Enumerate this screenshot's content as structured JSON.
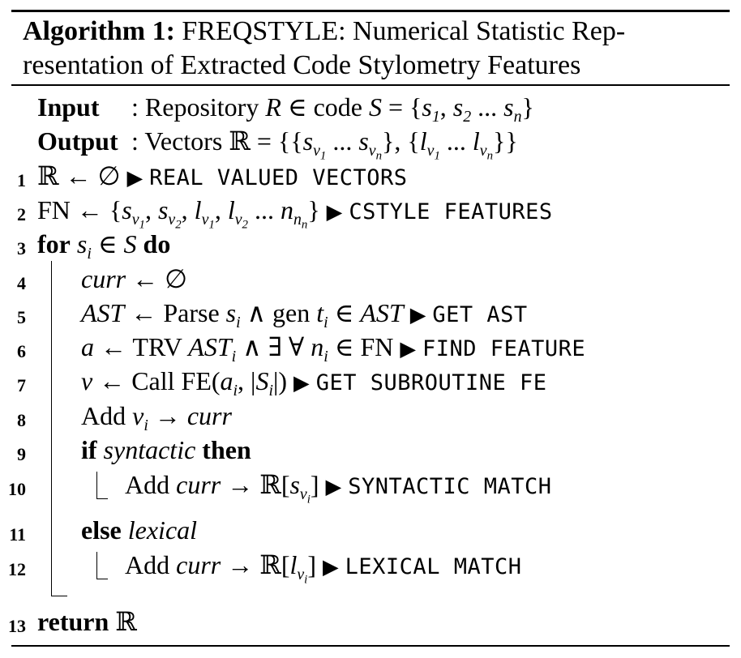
{
  "algorithm": {
    "label": "Algorithm 1:",
    "title": "FREQSTYLE: Numerical Statistic Representation of Extracted Code Stylometry Features",
    "title_line1": "FREQSTYLE: Numerical Statistic Rep-",
    "title_line2": "resentation of Extracted Code Stylometry Features"
  },
  "input": {
    "label": "Input",
    "text": ": Repository R ∈ code S = {s1, s2 ... sn}"
  },
  "output": {
    "label": "Output",
    "text": ": Vectors ℝ = {{sv1 ... svn}, {lv1 ... lvn}}"
  },
  "lines": [
    {
      "num": "1",
      "code": "ℝ ← ∅",
      "comment": "REAL VALUED VECTORS"
    },
    {
      "num": "2",
      "code": "FN ← {sv1, sv2, lv1, lv2 ... nnn}",
      "comment": "CSTYLE FEATURES"
    },
    {
      "num": "3",
      "code": "for si ∈ S do",
      "comment": ""
    },
    {
      "num": "4",
      "code": "curr ← ∅",
      "comment": ""
    },
    {
      "num": "5",
      "code": "AST ← Parse si ∧ gen ti ∈ AST",
      "comment": "GET AST"
    },
    {
      "num": "6",
      "code": "a ← TRV ASTi ∧ ∃ ∀ ni ∈ FN",
      "comment": "FIND FEATURE"
    },
    {
      "num": "7",
      "code": "v ← Call FE(ai, |Si|)",
      "comment": "GET SUBROUTINE FE"
    },
    {
      "num": "8",
      "code": "Add vi → curr",
      "comment": ""
    },
    {
      "num": "9",
      "code": "if syntactic then",
      "comment": ""
    },
    {
      "num": "10",
      "code": "Add curr → ℝ[svi]",
      "comment": "SYNTACTIC MATCH"
    },
    {
      "num": "11",
      "code": "else lexical",
      "comment": ""
    },
    {
      "num": "12",
      "code": "Add curr → ℝ[lvi]",
      "comment": "LEXICAL MATCH"
    },
    {
      "num": "13",
      "code": "return ℝ",
      "comment": ""
    }
  ],
  "keywords": {
    "for": "for",
    "do": "do",
    "if": "if",
    "then": "then",
    "else": "else",
    "return": "return"
  },
  "comment_marker": "▶"
}
